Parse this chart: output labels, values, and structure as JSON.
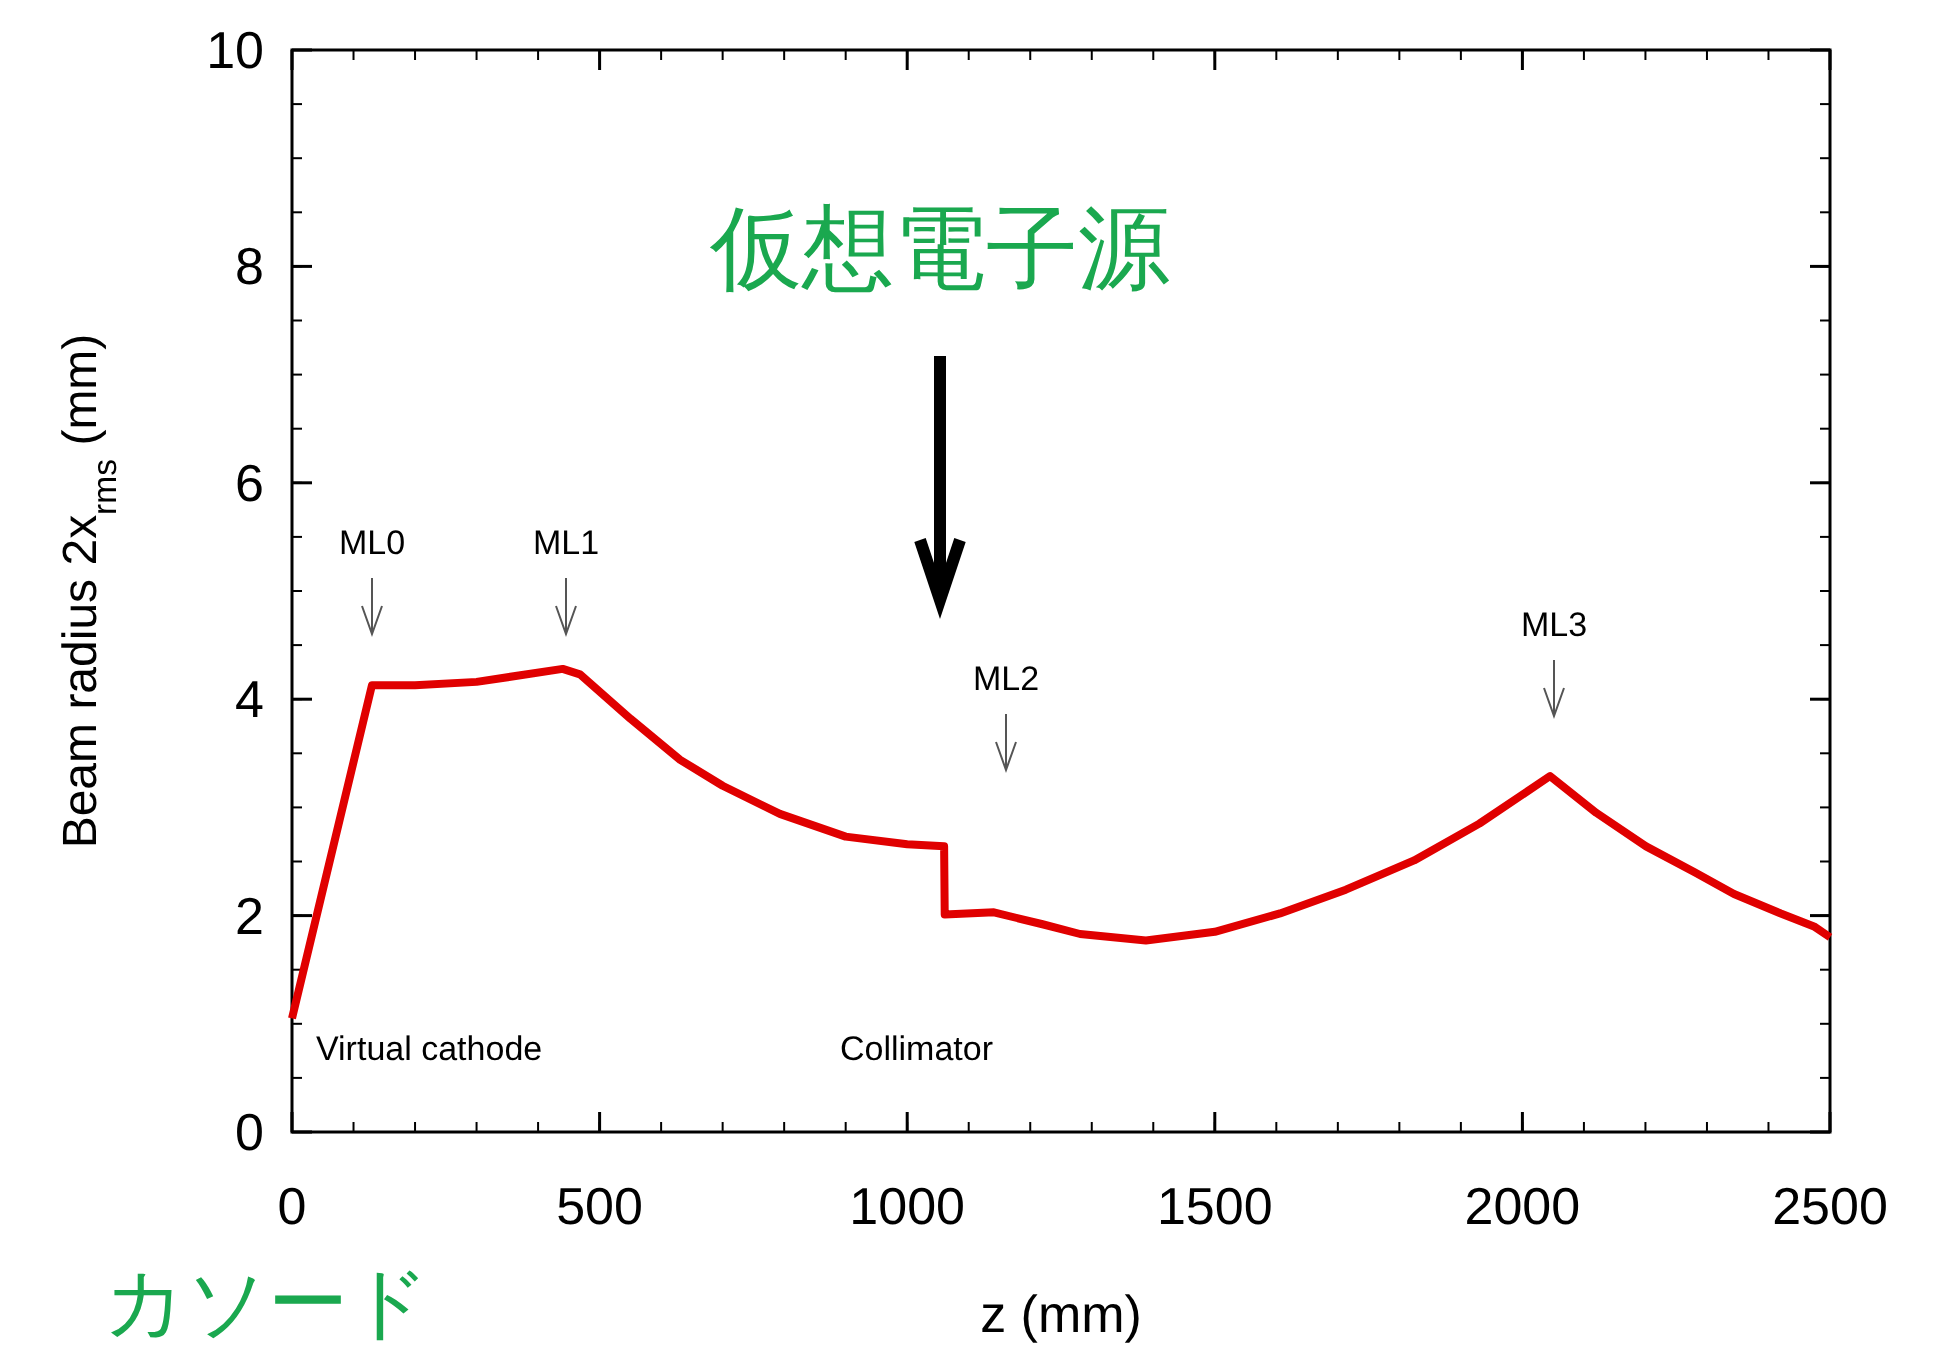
{
  "chart_data": {
    "type": "line",
    "xlabel": "z (mm)",
    "ylabel": "Beam radius 2x$_{rms}$ (mm)",
    "xlim": [
      0,
      2500
    ],
    "xticks": [
      0,
      500,
      1000,
      1500,
      2000,
      2500
    ],
    "ylim": [
      0,
      10
    ],
    "yticks": [
      0,
      2,
      4,
      6,
      8,
      10
    ],
    "grid": false,
    "marker": "none",
    "line_style": "solid",
    "series": [
      {
        "color": "#e00000",
        "x": [
          0,
          130,
          200,
          300,
          440,
          468,
          550,
          631,
          700,
          793,
          900,
          1000,
          1060,
          1061,
          1141,
          1220,
          1281,
          1388,
          1500,
          1606,
          1713,
          1824,
          1930,
          2045,
          2120,
          2201,
          2280,
          2344,
          2420,
          2474,
          2500
        ],
        "values": [
          1.05,
          4.13,
          4.13,
          4.16,
          4.28,
          4.23,
          3.82,
          3.44,
          3.2,
          2.94,
          2.73,
          2.66,
          2.64,
          2.01,
          2.03,
          1.92,
          1.83,
          1.77,
          1.85,
          2.02,
          2.24,
          2.51,
          2.85,
          3.29,
          2.95,
          2.64,
          2.4,
          2.2,
          2.02,
          1.9,
          1.8
        ]
      }
    ],
    "annotations": [
      "ML0",
      "ML1",
      "ML2",
      "ML3",
      "仮想電子源",
      "Virtual cathode",
      "Collimator",
      "カソード"
    ]
  }
}
